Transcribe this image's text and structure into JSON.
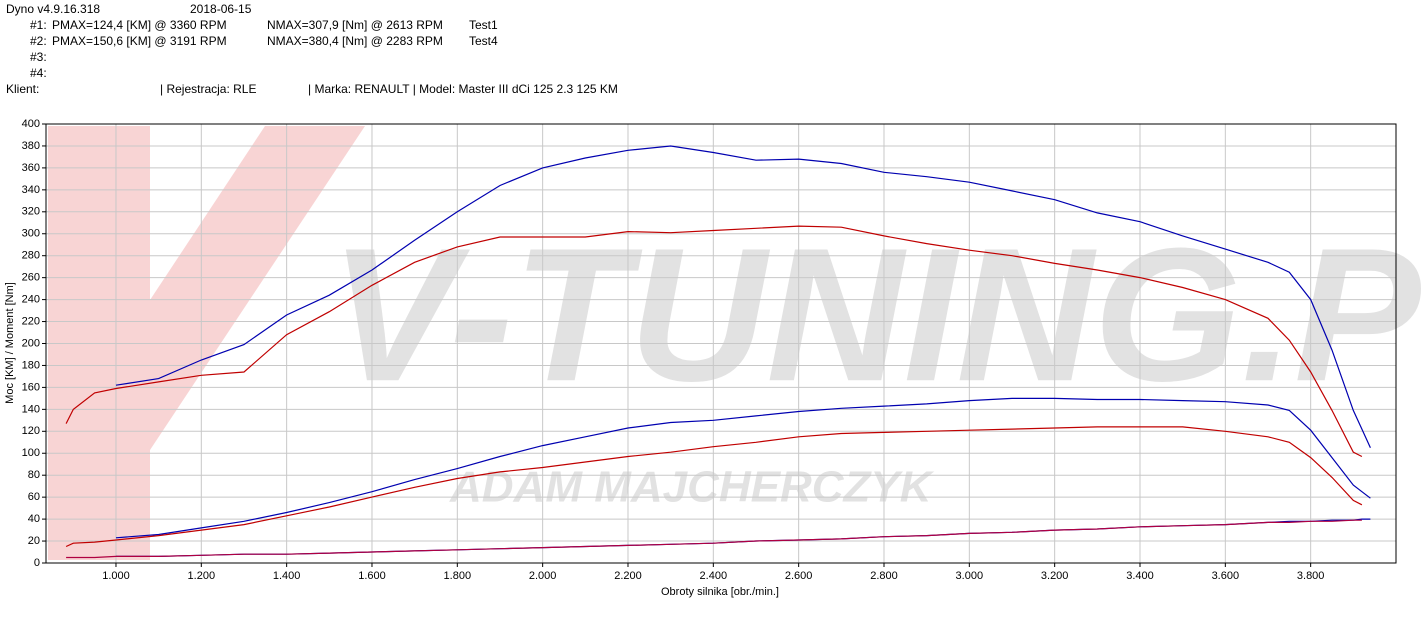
{
  "header": {
    "app": "Dyno v4.9.16.318",
    "date": "2018-06-15",
    "runs": [
      {
        "id": "#1:",
        "pmax": "PMAX=124,4 [KM] @ 3360 RPM",
        "nmax": "NMAX=307,9 [Nm] @ 2613 RPM",
        "test": "Test1"
      },
      {
        "id": "#2:",
        "pmax": "PMAX=150,6 [KM] @ 3191 RPM",
        "nmax": "NMAX=380,4 [Nm] @ 2283 RPM",
        "test": "Test4"
      },
      {
        "id": "#3:"
      },
      {
        "id": "#4:"
      }
    ],
    "client": "Klient:",
    "registration": "| Rejestracja: RLE",
    "vehicle": "| Marka: RENAULT | Model: Master III dCi 125 2.3 125 KM"
  },
  "watermark": [
    "V-TUNING.PL",
    "ADAM MAJCHERCZYK"
  ],
  "chart_data": {
    "type": "line",
    "xlabel": "Obroty silnika [obr./min.]",
    "ylabel": "Moc [KM] / Moment [Nm]",
    "xlim": [
      836,
      4000
    ],
    "ylim": [
      0,
      400
    ],
    "xticks": [
      {
        "value": 1000,
        "label": "1.000"
      },
      {
        "value": 1200,
        "label": "1.200"
      },
      {
        "value": 1400,
        "label": "1.400"
      },
      {
        "value": 1600,
        "label": "1.600"
      },
      {
        "value": 1800,
        "label": "1.800"
      },
      {
        "value": 2000,
        "label": "2.000"
      },
      {
        "value": 2200,
        "label": "2.200"
      },
      {
        "value": 2400,
        "label": "2.400"
      },
      {
        "value": 2600,
        "label": "2.600"
      },
      {
        "value": 2800,
        "label": "2.800"
      },
      {
        "value": 3000,
        "label": "3.000"
      },
      {
        "value": 3200,
        "label": "3.200"
      },
      {
        "value": 3400,
        "label": "3.400"
      },
      {
        "value": 3600,
        "label": "3.600"
      },
      {
        "value": 3800,
        "label": "3.800"
      }
    ],
    "yticks": [
      0,
      20,
      40,
      60,
      80,
      100,
      120,
      140,
      160,
      180,
      200,
      220,
      240,
      260,
      280,
      300,
      320,
      340,
      360,
      380,
      400
    ],
    "grid": true,
    "x": [
      883,
      900,
      950,
      1000,
      1100,
      1200,
      1300,
      1400,
      1500,
      1600,
      1700,
      1800,
      1900,
      2000,
      2100,
      2200,
      2300,
      2400,
      2500,
      2600,
      2700,
      2800,
      2900,
      3000,
      3100,
      3200,
      3300,
      3400,
      3500,
      3600,
      3700,
      3750,
      3800,
      3850,
      3900,
      3920,
      3940
    ],
    "series": [
      {
        "color": "#c00000",
        "values": [
          127,
          140,
          155,
          159,
          165,
          171,
          174,
          208,
          229,
          253,
          274,
          288,
          297,
          297,
          297,
          302,
          301,
          303,
          305,
          307,
          306,
          298,
          291,
          285,
          280,
          273,
          267,
          260,
          251,
          240,
          223,
          203,
          174,
          139,
          101,
          97,
          null
        ]
      },
      {
        "color": "#0000b0",
        "values": [
          null,
          null,
          null,
          162,
          168,
          185,
          199,
          226,
          244,
          267,
          294,
          320,
          344,
          360,
          369,
          376,
          380,
          374,
          367,
          368,
          364,
          356,
          352,
          347,
          339,
          331,
          319,
          311,
          298,
          286,
          274,
          265,
          240,
          194,
          139,
          122,
          105
        ]
      },
      {
        "color": "#0000b0",
        "values": [
          null,
          null,
          null,
          23,
          26,
          32,
          38,
          46,
          55,
          65,
          76,
          86,
          97,
          107,
          115,
          123,
          128,
          130,
          134,
          138,
          141,
          143,
          145,
          148,
          150,
          150,
          149,
          149,
          148,
          147,
          144,
          139,
          121,
          96,
          71,
          65,
          59
        ]
      },
      {
        "color": "#c00000",
        "values": [
          15,
          18,
          19,
          21,
          25,
          30,
          35,
          43,
          51,
          60,
          69,
          77,
          83,
          87,
          92,
          97,
          101,
          106,
          110,
          115,
          118,
          119,
          120,
          121,
          122,
          123,
          124,
          124,
          124,
          120,
          115,
          110,
          96,
          78,
          57,
          53,
          null
        ]
      },
      {
        "color": "#0000b0",
        "values": [
          null,
          null,
          null,
          6,
          6,
          7,
          8,
          8,
          9,
          10,
          11,
          12,
          13,
          14,
          15,
          16,
          17,
          18,
          20,
          21,
          22,
          24,
          25,
          27,
          28,
          30,
          31,
          33,
          34,
          35,
          37,
          38,
          38,
          39,
          39,
          40,
          40
        ]
      },
      {
        "color": "#b00040",
        "values": [
          5,
          5,
          5,
          6,
          6,
          7,
          8,
          8,
          9,
          10,
          11,
          12,
          13,
          14,
          15,
          16,
          17,
          18,
          20,
          21,
          22,
          24,
          25,
          27,
          28,
          30,
          31,
          33,
          34,
          35,
          37,
          37,
          38,
          38,
          39,
          39,
          null
        ]
      }
    ]
  }
}
